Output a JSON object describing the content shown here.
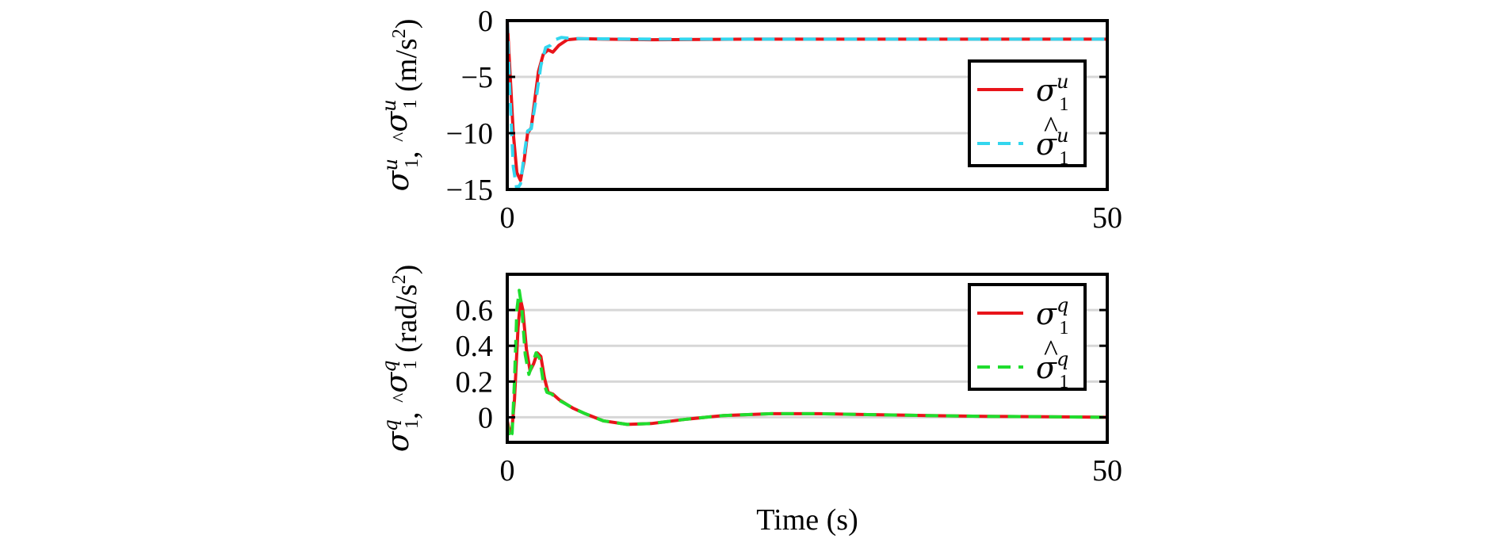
{
  "chart_data": [
    {
      "type": "line",
      "ylabel": {
        "sym1": "σ",
        "sup1": "u",
        "sub1": "1",
        "sep": ", ",
        "hat": "^",
        "sym2": "σ",
        "sup2": "u",
        "sub2": "1",
        "unit_open": " (m/s",
        "unit_exp": "2",
        "unit_close": ")"
      },
      "xlim": [
        0,
        50
      ],
      "ylim": [
        -15,
        0
      ],
      "x_ticks": [
        0,
        50
      ],
      "x_tick_labels": [
        "0",
        "50"
      ],
      "y_ticks": [
        0,
        -5,
        -10,
        -15
      ],
      "y_tick_labels": [
        "0",
        "−5",
        "−10",
        "−15"
      ],
      "grid": "horizontal",
      "legend_position": "right",
      "series": [
        {
          "legend": {
            "sym": "σ",
            "hat": "",
            "sup": "u",
            "sub": "1"
          },
          "color": "#e8141a",
          "style": "solid",
          "x": [
            0,
            0.2,
            0.5,
            0.8,
            1.1,
            1.4,
            1.7,
            2.0,
            2.3,
            2.6,
            3.0,
            3.4,
            3.8,
            4.3,
            5,
            6,
            8,
            12,
            20,
            30,
            40,
            50
          ],
          "y": [
            0,
            -4,
            -10,
            -13.5,
            -14.2,
            -12.5,
            -10,
            -9.5,
            -7,
            -4.5,
            -3,
            -2.6,
            -2.8,
            -2.2,
            -1.7,
            -1.6,
            -1.65,
            -1.7,
            -1.65,
            -1.65,
            -1.65,
            -1.65
          ]
        },
        {
          "legend": {
            "sym": "σ",
            "hat": "^",
            "sup": "u",
            "sub": "1"
          },
          "color": "#33d6ee",
          "style": "dashed",
          "x": [
            0,
            0.2,
            0.5,
            0.8,
            1.1,
            1.4,
            1.7,
            2.0,
            2.4,
            2.8,
            3.2,
            3.6,
            4.0,
            4.5,
            5,
            6,
            8,
            12,
            20,
            30,
            40,
            50
          ],
          "y": [
            0,
            -6,
            -13,
            -15,
            -14.5,
            -12,
            -9.8,
            -9.6,
            -7,
            -4,
            -2.4,
            -2.2,
            -1.7,
            -1.5,
            -1.55,
            -1.6,
            -1.62,
            -1.65,
            -1.65,
            -1.65,
            -1.65,
            -1.65
          ]
        }
      ]
    },
    {
      "type": "line",
      "xlabel": "Time (s)",
      "ylabel": {
        "sym1": "σ",
        "sup1": "q",
        "sub1": "1",
        "sep": ", ",
        "hat": "^",
        "sym2": "σ",
        "sup2": "q",
        "sub2": "1",
        "unit_open": " (rad/s",
        "unit_exp": "2",
        "unit_close": ")"
      },
      "xlim": [
        0,
        50
      ],
      "ylim": [
        -0.14,
        0.8
      ],
      "x_ticks": [
        0,
        50
      ],
      "x_tick_labels": [
        "0",
        "50"
      ],
      "y_ticks": [
        0,
        0.2,
        0.4,
        0.6
      ],
      "y_tick_labels": [
        "0",
        "0.2",
        "0.4",
        "0.6"
      ],
      "grid": "horizontal",
      "legend_position": "top-right",
      "series": [
        {
          "legend": {
            "sym": "σ",
            "hat": "",
            "sup": "q",
            "sub": "1"
          },
          "color": "#e8141a",
          "style": "solid",
          "x": [
            0,
            0.2,
            0.4,
            0.6,
            0.9,
            1.1,
            1.3,
            1.6,
            1.9,
            2.2,
            2.5,
            2.8,
            3.1,
            3.4,
            3.8,
            4.3,
            5,
            5.5,
            6.5,
            8,
            10,
            12,
            15,
            18,
            22,
            26,
            30,
            35,
            40,
            45,
            50
          ],
          "y": [
            -0.02,
            -0.08,
            -0.06,
            0.1,
            0.5,
            0.66,
            0.6,
            0.38,
            0.26,
            0.3,
            0.36,
            0.34,
            0.22,
            0.14,
            0.13,
            0.1,
            0.07,
            0.05,
            0.02,
            -0.02,
            -0.04,
            -0.035,
            -0.01,
            0.01,
            0.02,
            0.02,
            0.015,
            0.01,
            0.005,
            0.003,
            0.0
          ]
        },
        {
          "legend": {
            "sym": "σ",
            "hat": "^",
            "sup": "q",
            "sub": "1"
          },
          "color": "#1fdd2e",
          "style": "dashed",
          "x": [
            0,
            0.2,
            0.4,
            0.6,
            0.8,
            1.0,
            1.2,
            1.5,
            1.8,
            2.1,
            2.4,
            2.7,
            3.0,
            3.3,
            3.7,
            4.2,
            5,
            5.5,
            6.5,
            8,
            10,
            12,
            15,
            18,
            22,
            26,
            30,
            35,
            40,
            45,
            50
          ],
          "y": [
            -0.03,
            -0.12,
            -0.09,
            0.2,
            0.6,
            0.71,
            0.62,
            0.35,
            0.24,
            0.3,
            0.36,
            0.33,
            0.2,
            0.14,
            0.13,
            0.1,
            0.07,
            0.05,
            0.02,
            -0.02,
            -0.04,
            -0.035,
            -0.01,
            0.01,
            0.02,
            0.02,
            0.015,
            0.01,
            0.005,
            0.003,
            0.0
          ]
        }
      ]
    }
  ]
}
